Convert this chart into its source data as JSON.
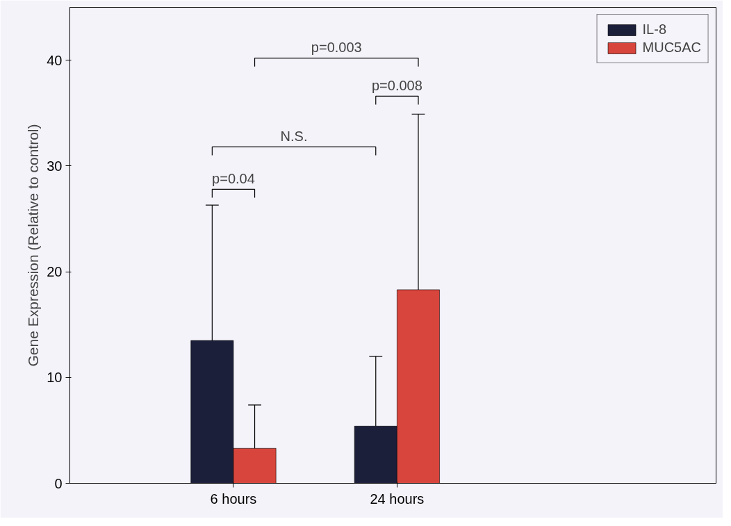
{
  "chart_data": {
    "type": "bar",
    "ylabel": "Gene Expression (Relative to control)",
    "categories": [
      "6 hours",
      "24 hours"
    ],
    "series": [
      {
        "name": "IL-8",
        "color": "#1b1f3a",
        "values": [
          13.5,
          5.4
        ],
        "errors": [
          [
            13.5,
            26.3
          ],
          [
            5.4,
            12.0
          ]
        ]
      },
      {
        "name": "MUC5AC",
        "color": "#d8453c",
        "values": [
          3.3,
          18.3
        ],
        "errors": [
          [
            3.3,
            7.4
          ],
          [
            18.3,
            34.9
          ]
        ]
      }
    ],
    "ylim": [
      0,
      45
    ],
    "yticks": [
      0,
      10,
      20,
      30,
      40
    ],
    "annotations": [
      "p=0.04",
      "N.S.",
      "p=0.008",
      "p=0.003"
    ],
    "legend": "top right",
    "grid": false
  }
}
